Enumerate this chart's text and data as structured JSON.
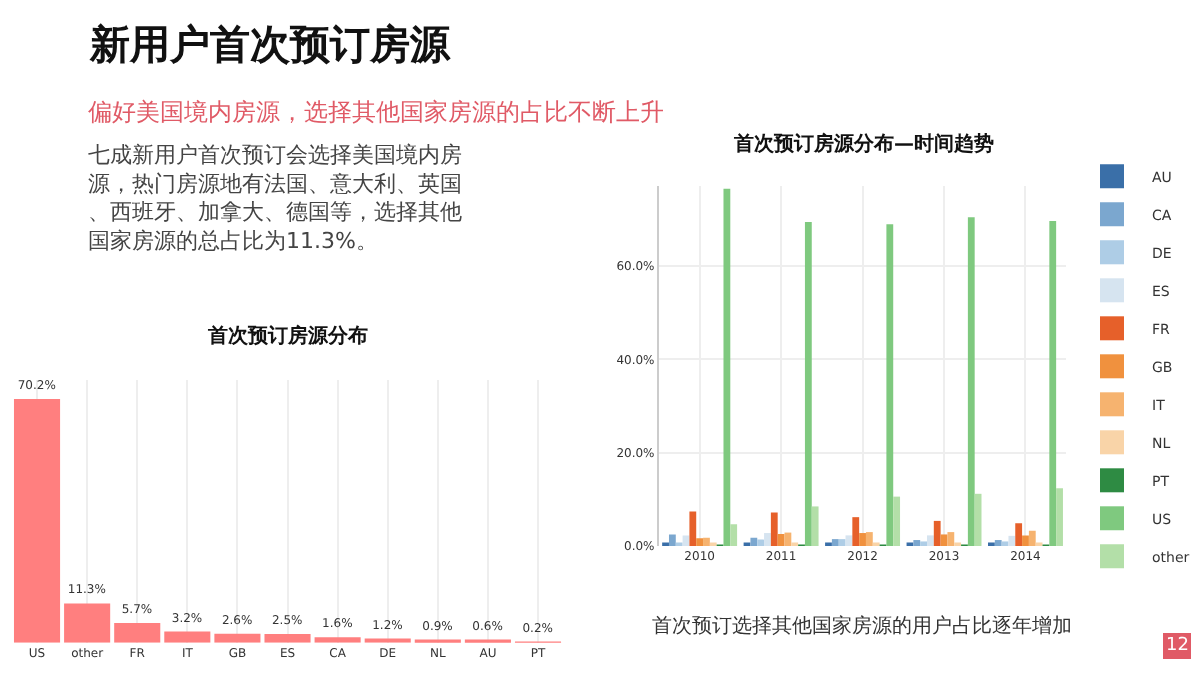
{
  "chart_data": [
    {
      "type": "other",
      "title": "新用户首次预订房源",
      "subtitle": "偏好美国境内房源，选择其他国家房源的占比不断上升",
      "annotations": [
        "七成新用户首次预订会选择美国境内房源，热门房源地有法国、意大利、英国、西班牙、加拿大、德国等，选择其他国家房源的总占比为11.3%。",
        "12"
      ]
    },
    {
      "type": "bar",
      "title": "首次预订房源分布",
      "categories": [
        "US",
        "other",
        "FR",
        "IT",
        "GB",
        "ES",
        "CA",
        "DE",
        "NL",
        "AU",
        "PT"
      ],
      "values": [
        70.2,
        11.3,
        5.7,
        3.2,
        2.6,
        2.5,
        1.6,
        1.2,
        0.9,
        0.6,
        0.2
      ],
      "value_labels": [
        "70.2%",
        "11.3%",
        "5.7%",
        "3.2%",
        "2.6%",
        "2.5%",
        "1.6%",
        "1.2%",
        "0.9%",
        "0.6%",
        "0.2%"
      ],
      "color": "#ff7f7f",
      "legend": false,
      "grid": "x"
    },
    {
      "type": "bar",
      "title": "首次预订房源分布—时间趋势",
      "categories": [
        "2010",
        "2011",
        "2012",
        "2013",
        "2014"
      ],
      "ylim": [
        0,
        77
      ],
      "yticks": [
        {
          "value": 0,
          "label": "0.0%"
        },
        {
          "value": 20,
          "label": "20.0%"
        },
        {
          "value": 40,
          "label": "40.0%"
        },
        {
          "value": 60,
          "label": "60.0%"
        }
      ],
      "grid": true,
      "legend": "right",
      "annotations": [
        "首次预订选择其他国家房源的用户占比逐年增加"
      ],
      "series": [
        {
          "name": "AU",
          "color": "#3a6fa8",
          "values": [
            0.4,
            0.4,
            0.4,
            0.5,
            0.5
          ]
        },
        {
          "name": "CA",
          "color": "#7ba7cf",
          "values": [
            2.5,
            1.8,
            1.5,
            1.3,
            1.3
          ]
        },
        {
          "name": "DE",
          "color": "#aecde6",
          "values": [
            0.6,
            1.4,
            1.5,
            1.0,
            1.0
          ]
        },
        {
          "name": "ES",
          "color": "#d6e4f0",
          "values": [
            2.3,
            2.8,
            2.3,
            2.3,
            2.2
          ]
        },
        {
          "name": "FR",
          "color": "#e6602a",
          "values": [
            7.4,
            7.2,
            6.2,
            5.4,
            4.9
          ]
        },
        {
          "name": "GB",
          "color": "#f0913e",
          "values": [
            1.7,
            2.6,
            2.8,
            2.5,
            2.3
          ]
        },
        {
          "name": "IT",
          "color": "#f6b36f",
          "values": [
            1.8,
            2.9,
            3.0,
            3.0,
            3.3
          ]
        },
        {
          "name": "NL",
          "color": "#f9d4a8",
          "values": [
            0.4,
            0.5,
            0.6,
            0.5,
            0.6
          ]
        },
        {
          "name": "PT",
          "color": "#2e8b43",
          "values": [
            0.1,
            0.1,
            0.1,
            0.1,
            0.1
          ]
        },
        {
          "name": "US",
          "color": "#7fc97f",
          "values": [
            76.5,
            69.4,
            68.9,
            70.4,
            69.6
          ]
        },
        {
          "name": "other",
          "color": "#b3dfa8",
          "values": [
            4.7,
            8.5,
            10.6,
            11.2,
            12.4
          ]
        }
      ]
    }
  ]
}
